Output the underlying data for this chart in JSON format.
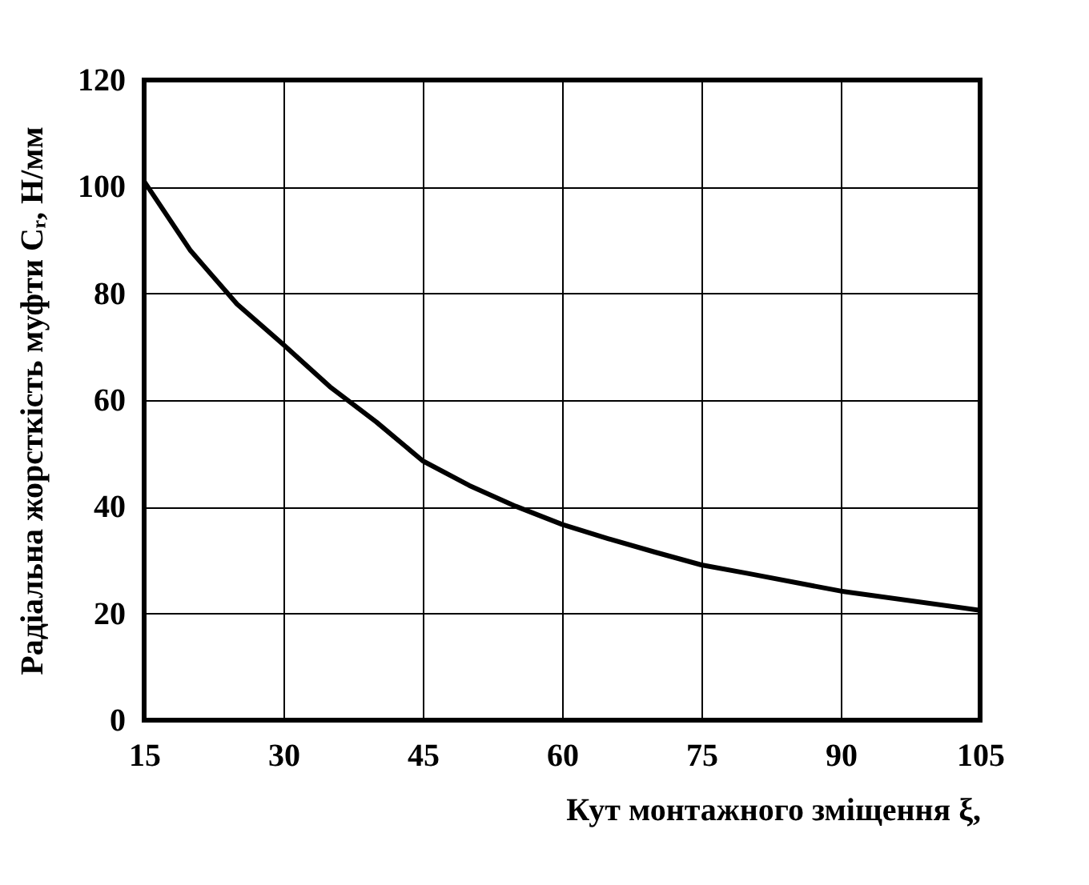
{
  "chart_data": {
    "type": "line",
    "xlabel": "Кут монтажного зміщення ξ,",
    "ylabel": "Радіальна жорсткість муфти Cᵣ, Н/мм",
    "x": [
      15,
      20,
      25,
      30,
      35,
      40,
      45,
      50,
      55,
      60,
      65,
      70,
      75,
      80,
      90,
      105
    ],
    "series": [
      {
        "color": "#000000",
        "values": [
          101,
          88,
          78,
          70.4,
          62.5,
          55.9,
          48.6,
          44,
          40.1,
          36.7,
          34,
          31.5,
          29.1,
          27.5,
          24.2,
          20.6
        ]
      }
    ],
    "xlim": [
      15,
      105
    ],
    "xticks": [
      15,
      30,
      45,
      60,
      75,
      90,
      105
    ],
    "ylim": [
      0,
      120
    ],
    "yticks": [
      0,
      20,
      40,
      60,
      80,
      100,
      120
    ],
    "grid": true,
    "marker": "none",
    "line_style": "solid"
  }
}
